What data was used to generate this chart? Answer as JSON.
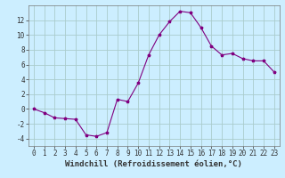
{
  "hours": [
    0,
    1,
    2,
    3,
    4,
    5,
    6,
    7,
    8,
    9,
    10,
    11,
    12,
    13,
    14,
    15,
    16,
    17,
    18,
    19,
    20,
    21,
    22,
    23
  ],
  "values": [
    0.0,
    -0.5,
    -1.2,
    -1.3,
    -1.4,
    -3.5,
    -3.7,
    -3.2,
    1.3,
    1.0,
    3.5,
    7.3,
    10.0,
    11.8,
    13.2,
    13.0,
    11.0,
    8.5,
    7.3,
    7.5,
    6.8,
    6.5,
    6.5,
    5.0
  ],
  "line_color": "#800080",
  "marker": "*",
  "bg_color": "#cceeff",
  "grid_color": "#aacccc",
  "xlabel": "Windchill (Refroidissement éolien,°C)",
  "ylim": [
    -5,
    14
  ],
  "xlim": [
    -0.5,
    23.5
  ],
  "yticks": [
    -4,
    -2,
    0,
    2,
    4,
    6,
    8,
    10,
    12
  ],
  "xticks": [
    0,
    1,
    2,
    3,
    4,
    5,
    6,
    7,
    8,
    9,
    10,
    11,
    12,
    13,
    14,
    15,
    16,
    17,
    18,
    19,
    20,
    21,
    22,
    23
  ],
  "label_fontsize": 6.5,
  "tick_fontsize": 5.5
}
